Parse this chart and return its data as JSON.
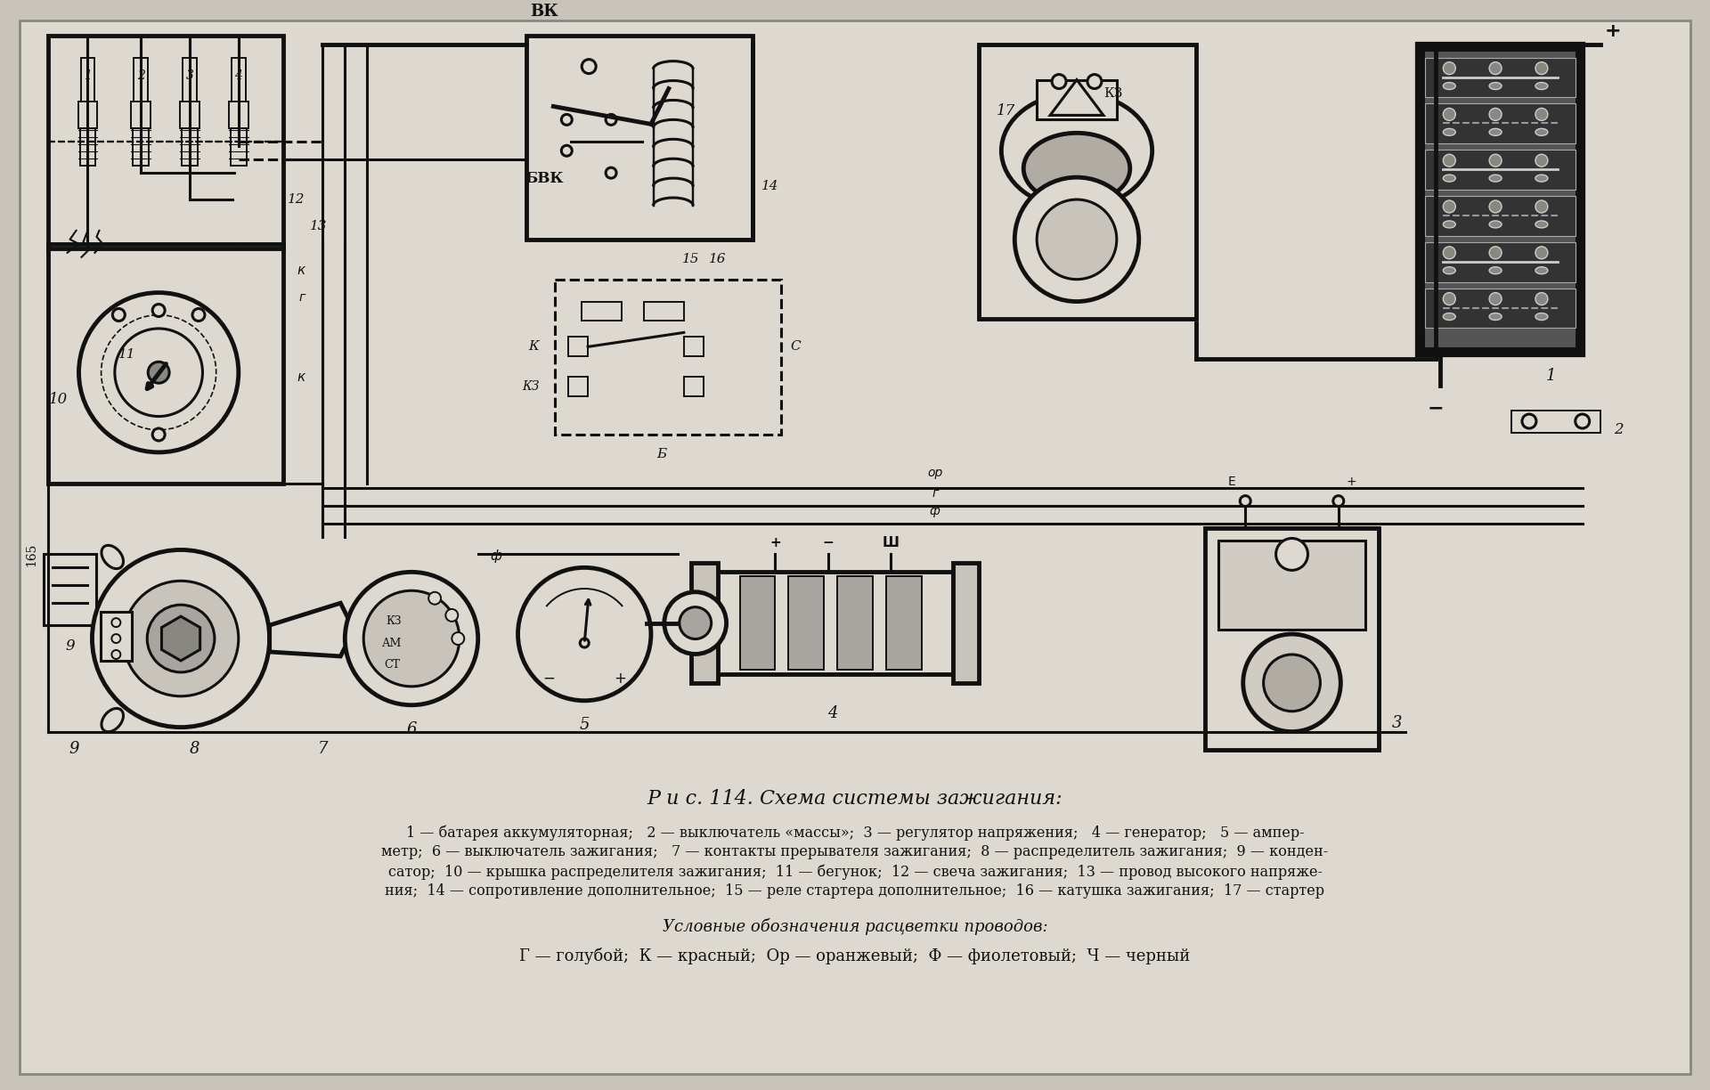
{
  "background_color": "#c8c4bc",
  "page_bg": "#ddd9d0",
  "border_color": "#111111",
  "title": "Р и с. 114. Схема системы зажигания:",
  "caption_line1": "1 — батарея аккумуляторная;   2 — выключатель «массы»;  3 — регулятор напряжения;   4 — генератор;   5 — ампер-",
  "caption_line2": "метр;  6 — выключатель зажигания;   7 — контакты прерывателя зажигания;  8 — распределитель зажигания;  9 — конден-",
  "caption_line3": "сатор;  10 — крышка распределителя зажигания;  11 — бегунок;  12 — свеча зажигания;  13 — провод высокого напряже-",
  "caption_line4": "ния;  14 — сопротивление дополнительное;  15 — реле стартера дополнительное;  16 — катушка зажигания;  17 — стартер",
  "legend_title": "Условные обозначения расцветки проводов:",
  "legend_line": "Г — голубой;  К — красный;  Ор — оранжевый;  Ф — фиолетовый;  Ч — черный",
  "fig_width": 19.2,
  "fig_height": 12.24,
  "dpi": 100
}
